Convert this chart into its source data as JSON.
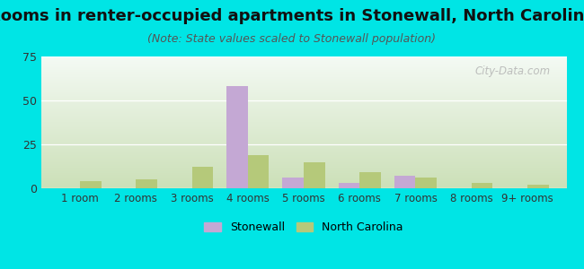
{
  "title": "Rooms in renter-occupied apartments in Stonewall, North Carolina",
  "subtitle": "(Note: State values scaled to Stonewall population)",
  "categories": [
    "1 room",
    "2 rooms",
    "3 rooms",
    "4 rooms",
    "5 rooms",
    "6 rooms",
    "7 rooms",
    "8 rooms",
    "9+ rooms"
  ],
  "stonewall_values": [
    0,
    0,
    0,
    58,
    6,
    3,
    7,
    0,
    0
  ],
  "nc_values": [
    4,
    5,
    12,
    19,
    15,
    9,
    6,
    3,
    2
  ],
  "stonewall_color": "#c4a8d4",
  "nc_color": "#b5c97a",
  "background_color": "#00e5e5",
  "plot_bg_top": "#f4faf4",
  "plot_bg_bottom": "#cce0b8",
  "ylim": [
    0,
    75
  ],
  "yticks": [
    0,
    25,
    50,
    75
  ],
  "bar_width": 0.38,
  "title_fontsize": 13,
  "subtitle_fontsize": 9,
  "watermark": "City-Data.com"
}
